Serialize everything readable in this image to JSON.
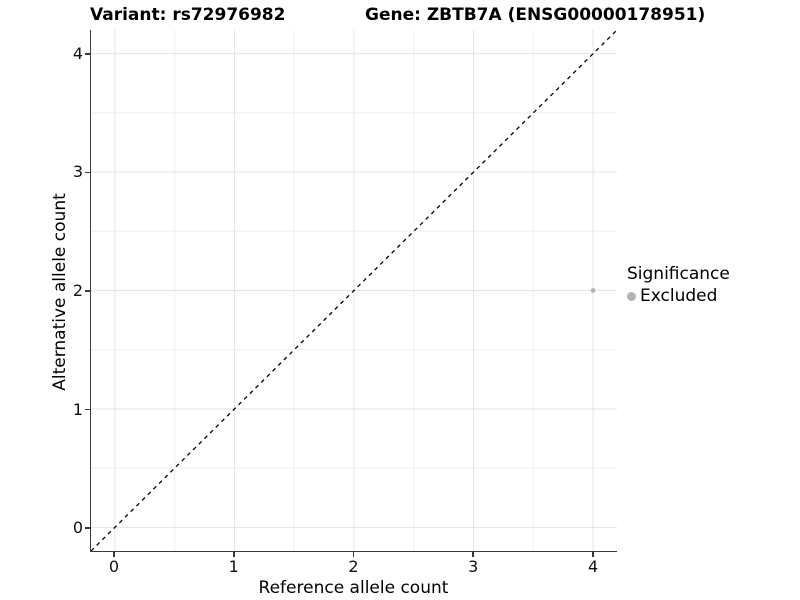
{
  "titles": {
    "variant": "Variant: rs72976982",
    "gene": "Gene: ZBTB7A (ENSG00000178951)"
  },
  "chart_data": {
    "type": "scatter",
    "title_left": "Variant: rs72976982",
    "title_right": "Gene: ZBTB7A (ENSG00000178951)",
    "xlabel": "Reference allele count",
    "ylabel": "Alternative allele count",
    "xlim": [
      -0.2,
      4.2
    ],
    "ylim": [
      -0.2,
      4.2
    ],
    "x_ticks": [
      0,
      1,
      2,
      3,
      4
    ],
    "y_ticks": [
      0,
      1,
      2,
      3,
      4
    ],
    "x_minor_ticks": [
      0.5,
      1.5,
      2.5,
      3.5
    ],
    "y_minor_ticks": [
      0.5,
      1.5,
      2.5,
      3.5
    ],
    "grid": "major+minor",
    "series": [
      {
        "name": "Excluded",
        "points": [
          {
            "x": 4,
            "y": 2
          }
        ],
        "color": "#b3b3b3",
        "point_radius": 2.4
      }
    ],
    "identity_line": {
      "from": [
        -0.2,
        -0.2
      ],
      "to": [
        4.2,
        4.2
      ],
      "style": "dashed",
      "color": "#000000"
    },
    "legend": {
      "title": "Significance",
      "position": "right",
      "items": [
        {
          "label": "Excluded",
          "color": "#b3b3b3"
        }
      ]
    }
  },
  "colors": {
    "background": "#ffffff",
    "axis_line": "#3a3a3a",
    "grid_major": "#e4e4e4",
    "grid_minor": "#efefef",
    "tick_text": "#111111",
    "point": "#b3b3b3"
  }
}
